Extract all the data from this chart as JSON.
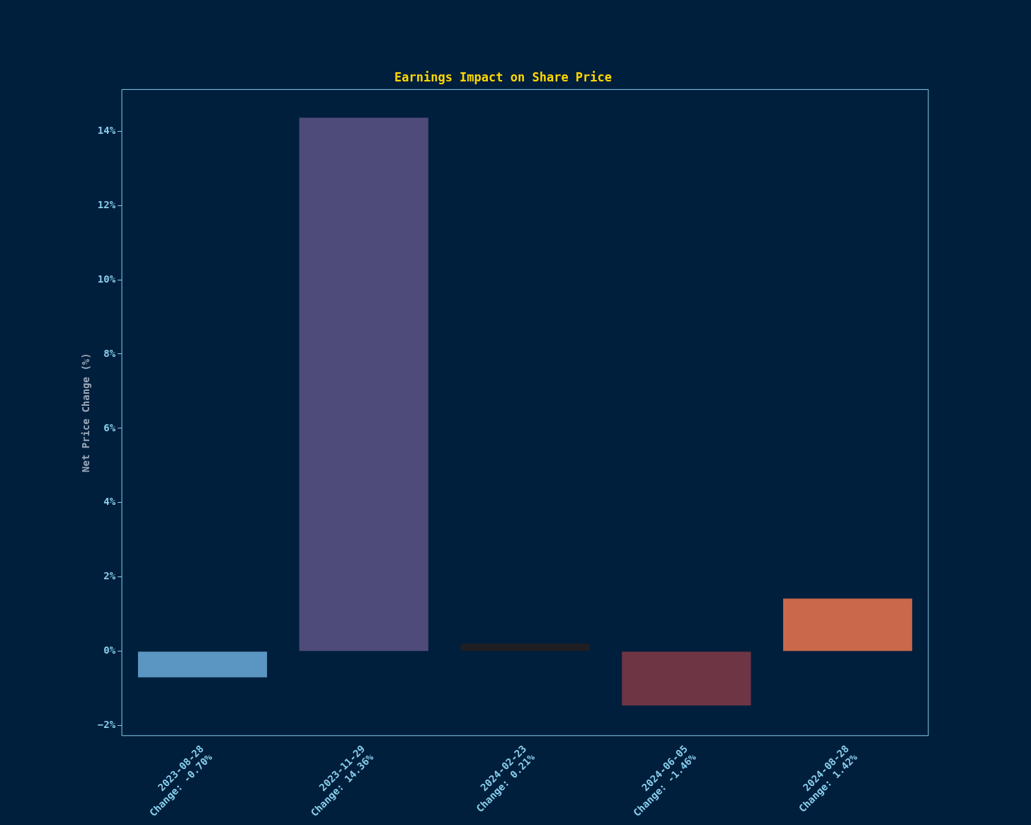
{
  "chart_data": {
    "type": "bar",
    "title": "Earnings Impact on Share Price",
    "ylabel": "Net Price Change (%)",
    "categories": [
      "2023-08-28\nChange: -0.70%",
      "2023-11-29\nChange: 14.36%",
      "2024-02-23\nChange: 0.21%",
      "2024-06-05\nChange: -1.46%",
      "2024-08-28\nChange: 1.42%"
    ],
    "values": [
      -0.7,
      14.36,
      0.21,
      -1.46,
      1.42
    ],
    "colors": [
      "#5b96c2",
      "#4e4b7a",
      "#1f1f22",
      "#6e3544",
      "#c9684a"
    ],
    "ylim": [
      -2.27,
      15.12
    ],
    "yticks": [
      {
        "value": -2,
        "label": "−2%"
      },
      {
        "value": 0,
        "label": "0%"
      },
      {
        "value": 2,
        "label": "2%"
      },
      {
        "value": 4,
        "label": "4%"
      },
      {
        "value": 6,
        "label": "6%"
      },
      {
        "value": 8,
        "label": "8%"
      },
      {
        "value": 10,
        "label": "10%"
      },
      {
        "value": 12,
        "label": "12%"
      },
      {
        "value": 14,
        "label": "14%"
      }
    ],
    "grid": false,
    "legend": false
  }
}
